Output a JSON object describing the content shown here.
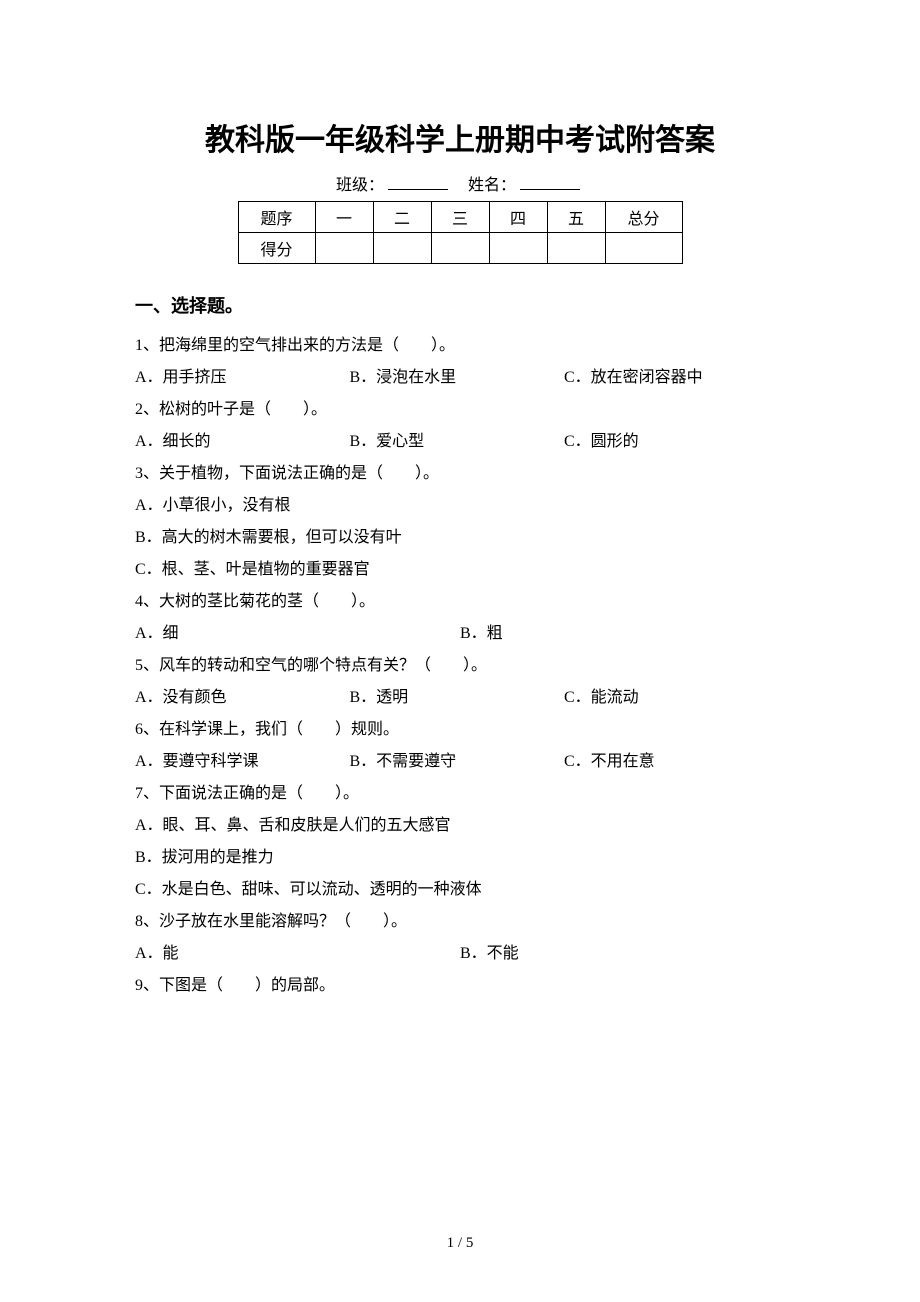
{
  "title": "教科版一年级科学上册期中考试附答案",
  "meta": {
    "class_label": "班级：",
    "name_label": "姓名："
  },
  "score_table": {
    "row1": [
      "题序",
      "一",
      "二",
      "三",
      "四",
      "五",
      "总分"
    ],
    "row2_label": "得分"
  },
  "section1_heading": "一、选择题。",
  "questions": [
    {
      "stem": "1、把海绵里的空气排出来的方法是（　　）。",
      "opts": [
        "A．用手挤压",
        "B．浸泡在水里",
        "C．放在密闭容器中"
      ],
      "layout": "w3"
    },
    {
      "stem": "2、松树的叶子是（　　）。",
      "opts": [
        "A．细长的",
        "B．爱心型",
        "C．圆形的"
      ],
      "layout": "w3"
    },
    {
      "stem": "3、关于植物，下面说法正确的是（　　）。",
      "opts": [
        "A．小草很小，没有根",
        "B．高大的树木需要根，但可以没有叶",
        "C．根、茎、叶是植物的重要器官"
      ],
      "layout": "stack"
    },
    {
      "stem": "4、大树的茎比菊花的茎（　　）。",
      "opts": [
        "A．细",
        "B．粗"
      ],
      "layout": "w2"
    },
    {
      "stem": "5、风车的转动和空气的哪个特点有关？（　　）。",
      "opts": [
        "A．没有颜色",
        "B．透明",
        "C．能流动"
      ],
      "layout": "w3"
    },
    {
      "stem": "6、在科学课上，我们（　　）规则。",
      "opts": [
        "A．要遵守科学课",
        "B．不需要遵守",
        "C．不用在意"
      ],
      "layout": "w3"
    },
    {
      "stem": "7、下面说法正确的是（　　）。",
      "opts": [
        "A．眼、耳、鼻、舌和皮肤是人们的五大感官",
        "B．拔河用的是推力",
        "C．水是白色、甜味、可以流动、透明的一种液体"
      ],
      "layout": "stack"
    },
    {
      "stem": "8、沙子放在水里能溶解吗？（　　）。",
      "opts": [
        "A．能",
        "B．不能"
      ],
      "layout": "w2"
    },
    {
      "stem": "9、下图是（　　）的局部。",
      "opts": [],
      "layout": "none"
    }
  ],
  "footer": "1 / 5"
}
